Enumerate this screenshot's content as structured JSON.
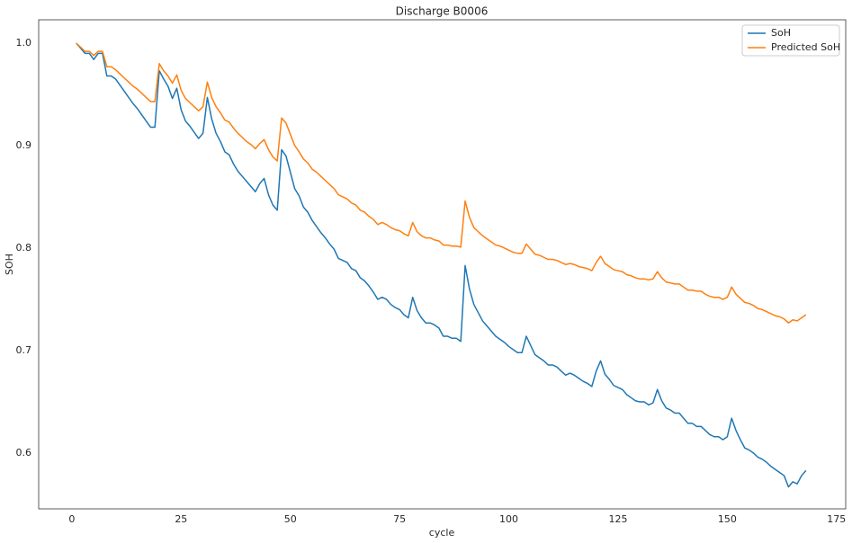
{
  "chart_data": {
    "type": "line",
    "title": "Discharge B0006",
    "xlabel": "cycle",
    "ylabel": "SOH",
    "x": [
      1,
      2,
      3,
      4,
      5,
      6,
      7,
      8,
      9,
      10,
      11,
      12,
      13,
      14,
      15,
      16,
      17,
      18,
      19,
      20,
      21,
      22,
      23,
      24,
      25,
      26,
      27,
      28,
      29,
      30,
      31,
      32,
      33,
      34,
      35,
      36,
      37,
      38,
      39,
      40,
      41,
      42,
      43,
      44,
      45,
      46,
      47,
      48,
      49,
      50,
      51,
      52,
      53,
      54,
      55,
      56,
      57,
      58,
      59,
      60,
      61,
      62,
      63,
      64,
      65,
      66,
      67,
      68,
      69,
      70,
      71,
      72,
      73,
      74,
      75,
      76,
      77,
      78,
      79,
      80,
      81,
      82,
      83,
      84,
      85,
      86,
      87,
      88,
      89,
      90,
      91,
      92,
      93,
      94,
      95,
      96,
      97,
      98,
      99,
      100,
      101,
      102,
      103,
      104,
      105,
      106,
      107,
      108,
      109,
      110,
      111,
      112,
      113,
      114,
      115,
      116,
      117,
      118,
      119,
      120,
      121,
      122,
      123,
      124,
      125,
      126,
      127,
      128,
      129,
      130,
      131,
      132,
      133,
      134,
      135,
      136,
      137,
      138,
      139,
      140,
      141,
      142,
      143,
      144,
      145,
      146,
      147,
      148,
      149,
      150,
      151,
      152,
      153,
      154,
      155,
      156,
      157,
      158,
      159,
      160,
      161,
      162,
      163,
      164,
      165,
      166,
      167,
      168
    ],
    "series": [
      {
        "name": "SoH",
        "color": "#1f77b4",
        "values": [
          1.0,
          0.995,
          0.99,
          0.99,
          0.984,
          0.99,
          0.99,
          0.968,
          0.968,
          0.965,
          0.959,
          0.953,
          0.947,
          0.941,
          0.936,
          0.93,
          0.924,
          0.918,
          0.918,
          0.973,
          0.965,
          0.958,
          0.946,
          0.956,
          0.935,
          0.924,
          0.919,
          0.913,
          0.907,
          0.912,
          0.947,
          0.926,
          0.912,
          0.904,
          0.894,
          0.891,
          0.882,
          0.875,
          0.87,
          0.865,
          0.86,
          0.855,
          0.863,
          0.868,
          0.852,
          0.842,
          0.837,
          0.896,
          0.89,
          0.874,
          0.858,
          0.851,
          0.84,
          0.835,
          0.827,
          0.821,
          0.815,
          0.81,
          0.804,
          0.799,
          0.79,
          0.788,
          0.786,
          0.78,
          0.778,
          0.771,
          0.768,
          0.763,
          0.757,
          0.75,
          0.752,
          0.75,
          0.745,
          0.742,
          0.74,
          0.735,
          0.732,
          0.752,
          0.739,
          0.732,
          0.727,
          0.727,
          0.725,
          0.722,
          0.714,
          0.714,
          0.712,
          0.712,
          0.709,
          0.783,
          0.76,
          0.745,
          0.737,
          0.729,
          0.724,
          0.719,
          0.714,
          0.711,
          0.708,
          0.704,
          0.701,
          0.698,
          0.698,
          0.714,
          0.705,
          0.696,
          0.693,
          0.69,
          0.686,
          0.686,
          0.684,
          0.68,
          0.676,
          0.678,
          0.676,
          0.673,
          0.67,
          0.668,
          0.665,
          0.68,
          0.69,
          0.677,
          0.672,
          0.666,
          0.664,
          0.662,
          0.657,
          0.654,
          0.651,
          0.65,
          0.65,
          0.647,
          0.649,
          0.662,
          0.651,
          0.644,
          0.642,
          0.639,
          0.639,
          0.634,
          0.629,
          0.629,
          0.626,
          0.626,
          0.622,
          0.618,
          0.616,
          0.616,
          0.613,
          0.616,
          0.634,
          0.622,
          0.613,
          0.605,
          0.603,
          0.6,
          0.596,
          0.594,
          0.591,
          0.587,
          0.584,
          0.581,
          0.578,
          0.567,
          0.572,
          0.57,
          0.578,
          0.583
        ]
      },
      {
        "name": "Predicted SoH",
        "color": "#ff7f0e",
        "values": [
          1.0,
          0.996,
          0.992,
          0.992,
          0.988,
          0.992,
          0.992,
          0.977,
          0.977,
          0.974,
          0.97,
          0.966,
          0.962,
          0.958,
          0.955,
          0.951,
          0.947,
          0.943,
          0.943,
          0.98,
          0.973,
          0.968,
          0.961,
          0.969,
          0.954,
          0.946,
          0.942,
          0.938,
          0.934,
          0.938,
          0.962,
          0.947,
          0.938,
          0.932,
          0.925,
          0.923,
          0.917,
          0.912,
          0.908,
          0.904,
          0.901,
          0.897,
          0.902,
          0.906,
          0.896,
          0.889,
          0.885,
          0.927,
          0.922,
          0.911,
          0.9,
          0.894,
          0.887,
          0.883,
          0.877,
          0.874,
          0.87,
          0.866,
          0.862,
          0.858,
          0.852,
          0.85,
          0.848,
          0.844,
          0.842,
          0.837,
          0.835,
          0.831,
          0.828,
          0.823,
          0.825,
          0.823,
          0.82,
          0.818,
          0.817,
          0.814,
          0.812,
          0.825,
          0.816,
          0.812,
          0.81,
          0.81,
          0.808,
          0.807,
          0.803,
          0.803,
          0.802,
          0.802,
          0.801,
          0.846,
          0.83,
          0.82,
          0.816,
          0.812,
          0.809,
          0.806,
          0.803,
          0.802,
          0.8,
          0.798,
          0.796,
          0.795,
          0.795,
          0.804,
          0.799,
          0.794,
          0.793,
          0.791,
          0.789,
          0.789,
          0.788,
          0.786,
          0.784,
          0.785,
          0.784,
          0.782,
          0.781,
          0.78,
          0.778,
          0.786,
          0.792,
          0.785,
          0.782,
          0.779,
          0.778,
          0.777,
          0.774,
          0.773,
          0.771,
          0.77,
          0.77,
          0.769,
          0.77,
          0.777,
          0.771,
          0.767,
          0.766,
          0.765,
          0.765,
          0.762,
          0.759,
          0.759,
          0.758,
          0.758,
          0.755,
          0.753,
          0.752,
          0.752,
          0.75,
          0.752,
          0.762,
          0.755,
          0.751,
          0.747,
          0.746,
          0.744,
          0.741,
          0.74,
          0.738,
          0.736,
          0.734,
          0.733,
          0.731,
          0.727,
          0.73,
          0.729,
          0.732,
          0.735
        ]
      }
    ],
    "xlim": [
      -7.6,
      177.1
    ],
    "ylim": [
      0.5456,
      1.0228
    ],
    "xticks": [
      0,
      25,
      50,
      75,
      100,
      125,
      150,
      175
    ],
    "yticks": [
      0.6,
      0.7,
      0.8,
      0.9,
      {
        "value": 1,
        "label": "1.0"
      }
    ],
    "grid": false,
    "legend": "upper right"
  }
}
